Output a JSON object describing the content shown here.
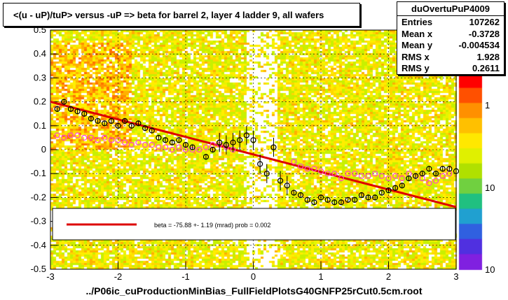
{
  "title": "<(u - uP)/tuP> versus  -uP => beta for barrel 2, layer 4 ladder 9, all wafers",
  "footer": "../P06ic_cuProductionMinBias_FullFieldPlotsG40GNFP25rCut0.5cm.root",
  "stats": {
    "name": "duOvertuPuP4009",
    "rows": [
      {
        "label": "Entries",
        "value": "107262"
      },
      {
        "label": "Mean x",
        "value": "-0.3728"
      },
      {
        "label": "Mean y",
        "value": "-0.004534"
      },
      {
        "label": "RMS x",
        "value": "1.928"
      },
      {
        "label": "RMS y",
        "value": "0.2611"
      }
    ]
  },
  "legend": {
    "text": "beta =  -75.88 +-  1.19 (mrad) prob = 0.002"
  },
  "colors": {
    "fit_line": "#dd0000",
    "pink_markers": "#ff44cc",
    "black_markers": "#000000"
  },
  "chart_data": {
    "type": "heatmap",
    "xlim": [
      -3,
      3
    ],
    "ylim": [
      -0.5,
      0.5
    ],
    "x_ticks": [
      "-3",
      "-2",
      "-1",
      "0",
      "1",
      "2",
      "3"
    ],
    "y_ticks": [
      "-0.5",
      "-0.4",
      "-0.3",
      "-0.2",
      "-0.1",
      "0",
      "0.1",
      "0.2",
      "0.3",
      "0.4",
      "0.5"
    ],
    "z_ticks": [
      "1",
      "10",
      "10"
    ],
    "grid": true,
    "fit_line": {
      "x": [
        -3.0,
        3.0
      ],
      "y": [
        0.2,
        -0.24
      ]
    },
    "profile_pink": {
      "x": [
        -2.9,
        -2.8,
        -2.7,
        -2.6,
        -2.5,
        -2.4,
        -2.3,
        -2.2,
        -2.1,
        -2.0,
        -1.9,
        -1.8,
        -1.7,
        -1.6,
        -1.5,
        -1.4,
        -1.3,
        -1.2,
        -1.1,
        -1.0,
        -0.9,
        -0.8,
        -0.7,
        -0.6,
        -0.5,
        -0.4,
        -0.3,
        0.6,
        0.7,
        0.8,
        0.9,
        1.0,
        1.1,
        1.2,
        1.3,
        1.4,
        1.5,
        1.6,
        1.7,
        1.8,
        1.9,
        2.0,
        2.1,
        2.2,
        2.3,
        2.4,
        2.5,
        2.6,
        2.7,
        2.8,
        2.9
      ],
      "y": [
        0.06,
        0.05,
        0.06,
        0.06,
        0.05,
        0.05,
        0.04,
        0.05,
        0.04,
        0.04,
        0.03,
        0.02,
        0.03,
        0.02,
        0.02,
        0.01,
        0.01,
        0.0,
        0.01,
        0.0,
        0.0,
        0.0,
        0.01,
        0.02,
        0.02,
        0.01,
        0.0,
        -0.05,
        -0.07,
        -0.08,
        -0.08,
        -0.09,
        -0.1,
        -0.1,
        -0.12,
        -0.1,
        -0.1,
        -0.11,
        -0.11,
        -0.1,
        -0.11,
        -0.12,
        -0.11,
        -0.12,
        -0.1,
        -0.11,
        -0.12,
        -0.14,
        -0.13,
        -0.11,
        -0.1
      ]
    },
    "profile_black": {
      "x": [
        -2.9,
        -2.8,
        -2.7,
        -2.6,
        -2.5,
        -2.4,
        -2.3,
        -2.2,
        -2.1,
        -2.0,
        -1.9,
        -1.8,
        -1.7,
        -1.6,
        -1.5,
        -1.4,
        -1.3,
        -1.2,
        -1.1,
        -1.0,
        -0.9,
        -0.7,
        -0.6,
        -0.5,
        -0.4,
        -0.3,
        -0.2,
        -0.1,
        0.0,
        0.1,
        0.2,
        0.3,
        0.4,
        0.5,
        0.6,
        0.7,
        0.8,
        0.9,
        1.0,
        1.1,
        1.2,
        1.3,
        1.4,
        1.5,
        1.6,
        1.7,
        1.8,
        1.9,
        2.0,
        2.1,
        2.2,
        2.3,
        2.4,
        2.5,
        2.6,
        2.7,
        2.8,
        2.9,
        3.0
      ],
      "y": [
        0.17,
        0.2,
        0.17,
        0.16,
        0.15,
        0.13,
        0.12,
        0.11,
        0.12,
        0.1,
        0.12,
        0.1,
        0.11,
        0.09,
        0.08,
        0.05,
        0.04,
        0.03,
        0.04,
        0.02,
        0.01,
        -0.03,
        0.0,
        0.03,
        0.02,
        0.03,
        0.04,
        0.06,
        0.04,
        -0.06,
        -0.1,
        0.01,
        -0.13,
        -0.15,
        -0.18,
        -0.19,
        -0.21,
        -0.22,
        -0.2,
        -0.21,
        -0.22,
        -0.22,
        -0.21,
        -0.21,
        -0.19,
        -0.2,
        -0.2,
        -0.18,
        -0.17,
        -0.16,
        -0.15,
        -0.12,
        -0.11,
        -0.1,
        -0.08,
        -0.1,
        -0.08,
        -0.08,
        -0.09
      ]
    }
  }
}
